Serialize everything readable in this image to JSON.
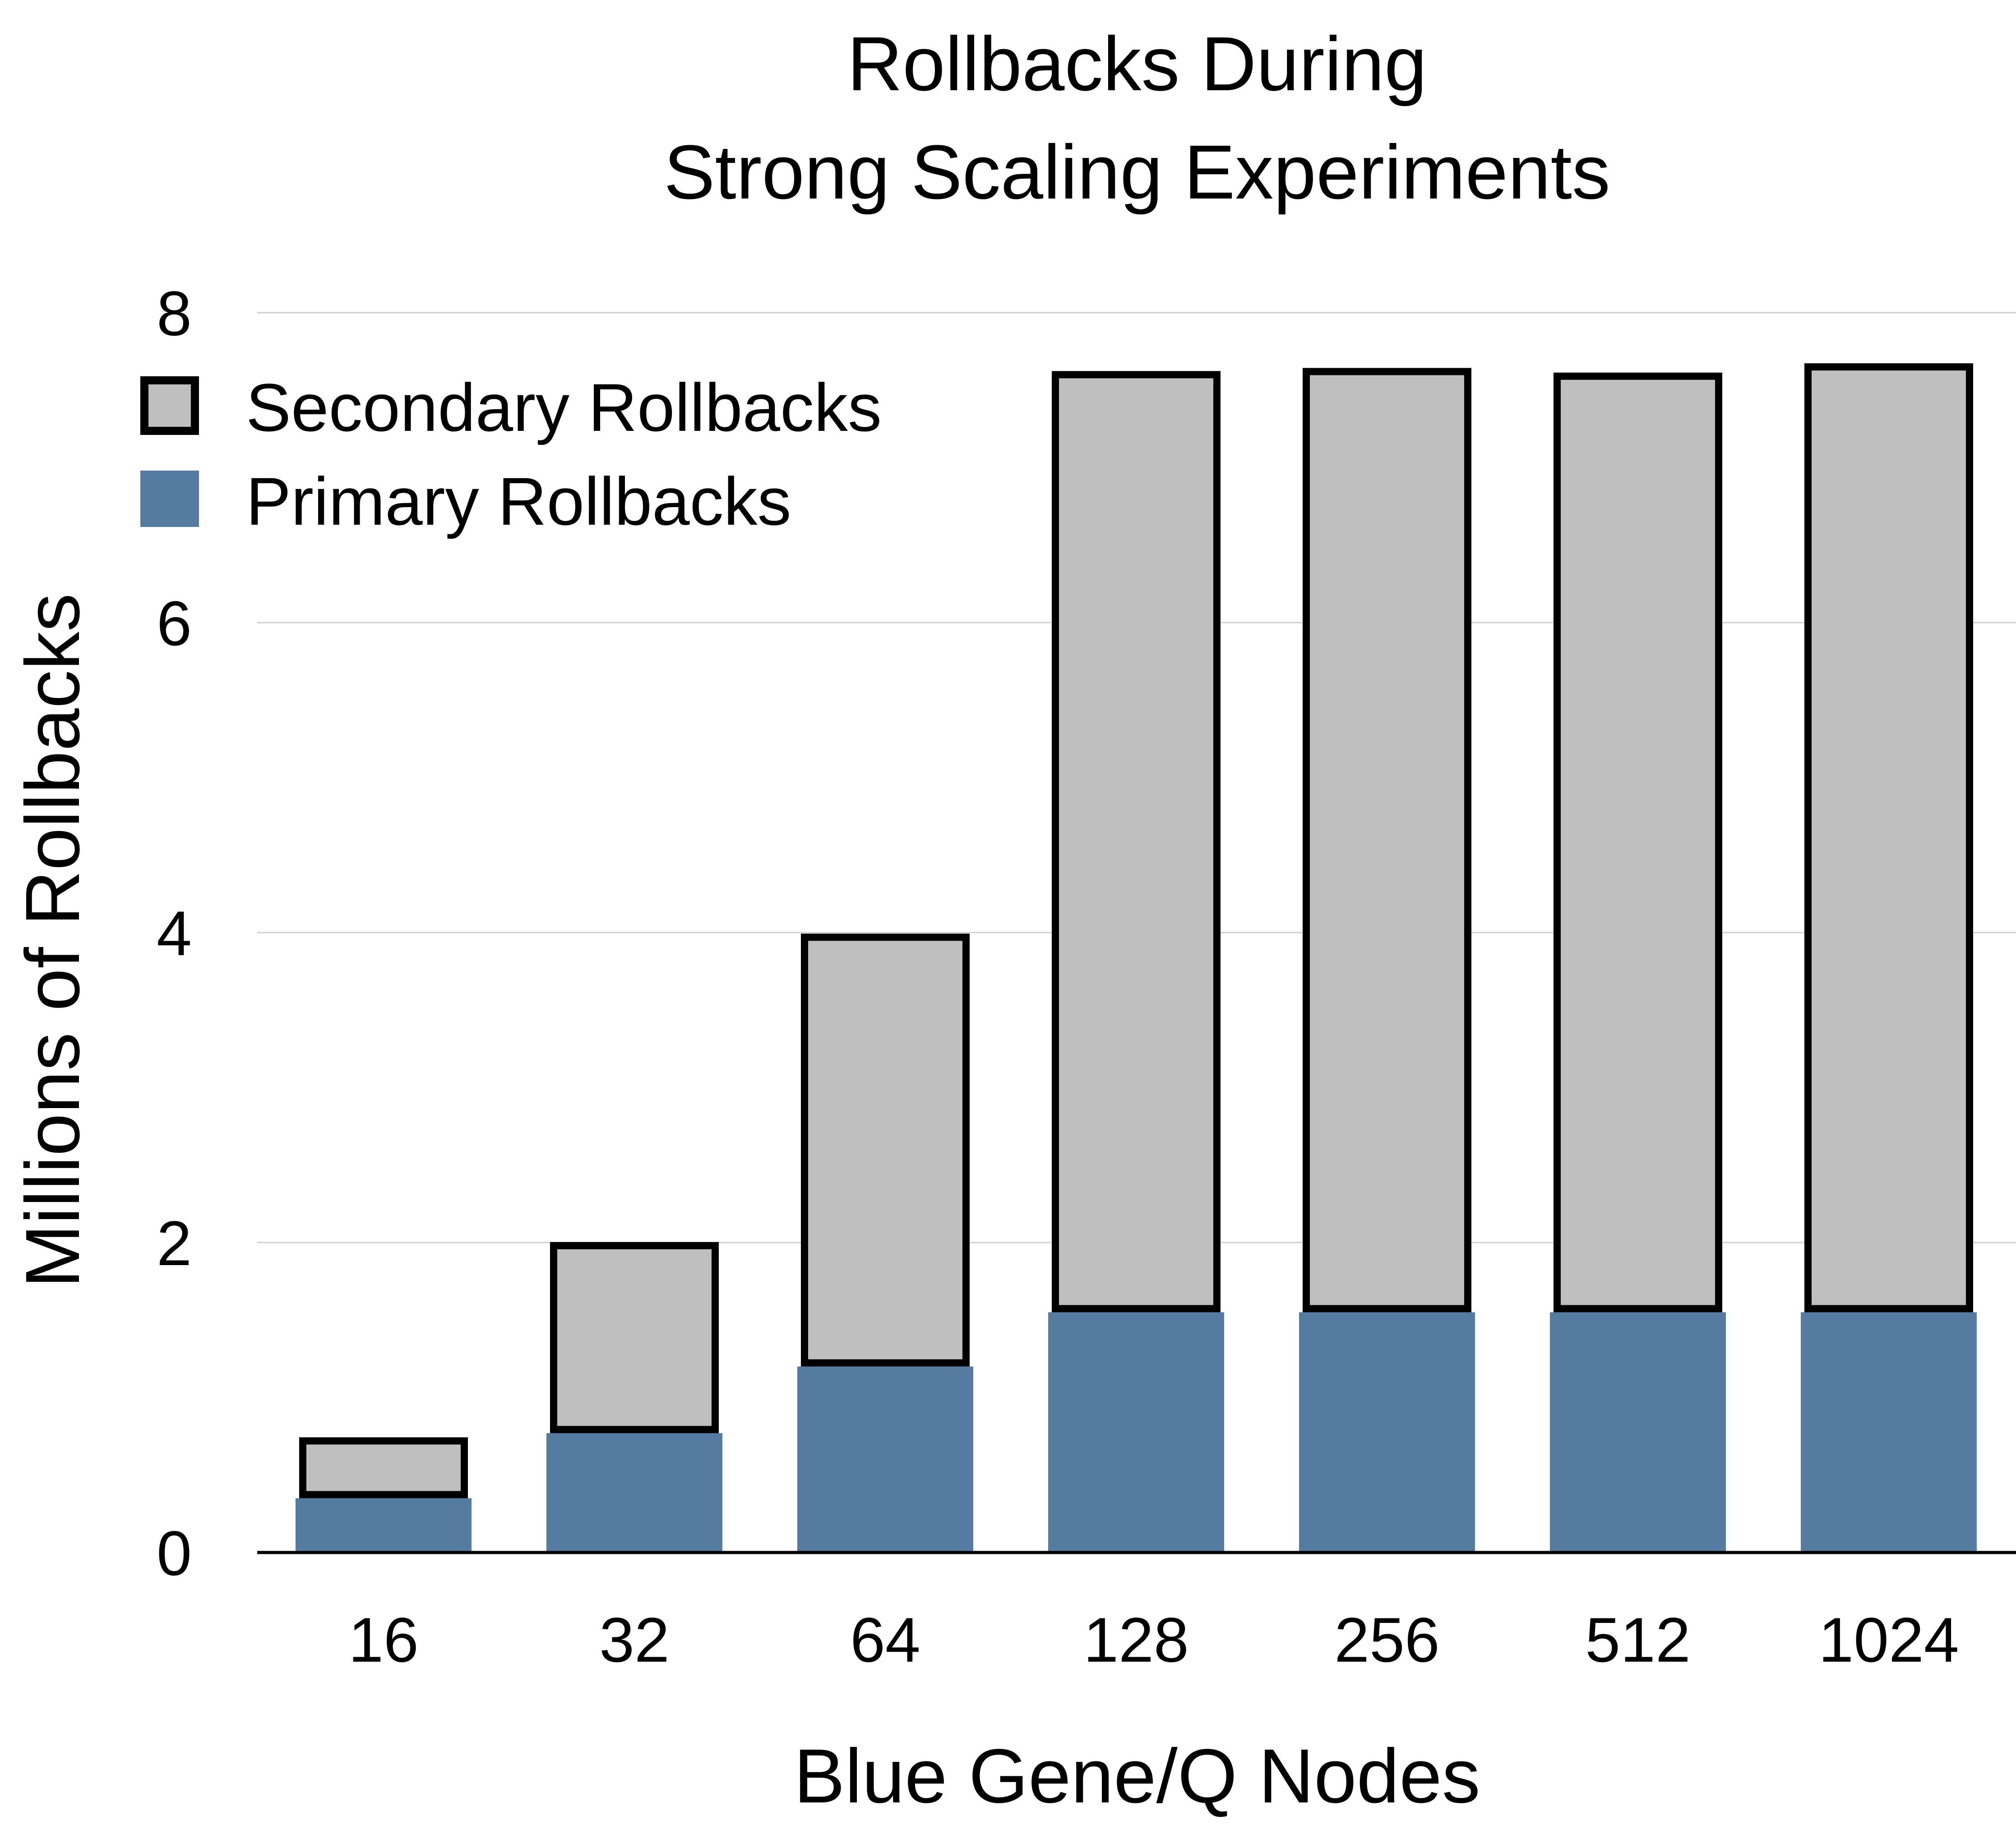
{
  "chart_data": {
    "type": "bar",
    "stacked": true,
    "title": [
      "Rollbacks During",
      "Strong Scaling Experiments"
    ],
    "xlabel": "Blue Gene/Q Nodes",
    "ylabel": "Millions of Rollbacks",
    "categories": [
      "16",
      "32",
      "64",
      "128",
      "256",
      "512",
      "1024"
    ],
    "yticks": [
      "0",
      "2",
      "4",
      "6",
      "8"
    ],
    "ylim": [
      0,
      8
    ],
    "grid": true,
    "legend_position": "top-left",
    "series": [
      {
        "name": "Primary Rollbacks",
        "color": "#557ba0",
        "values": [
          0.35,
          0.77,
          1.2,
          1.55,
          1.55,
          1.55,
          1.55
        ]
      },
      {
        "name": "Secondary Rollbacks",
        "color": "#bfbfbf",
        "outline": "#000000",
        "values": [
          0.37,
          1.21,
          2.77,
          6.05,
          6.07,
          6.04,
          6.1
        ]
      }
    ]
  }
}
